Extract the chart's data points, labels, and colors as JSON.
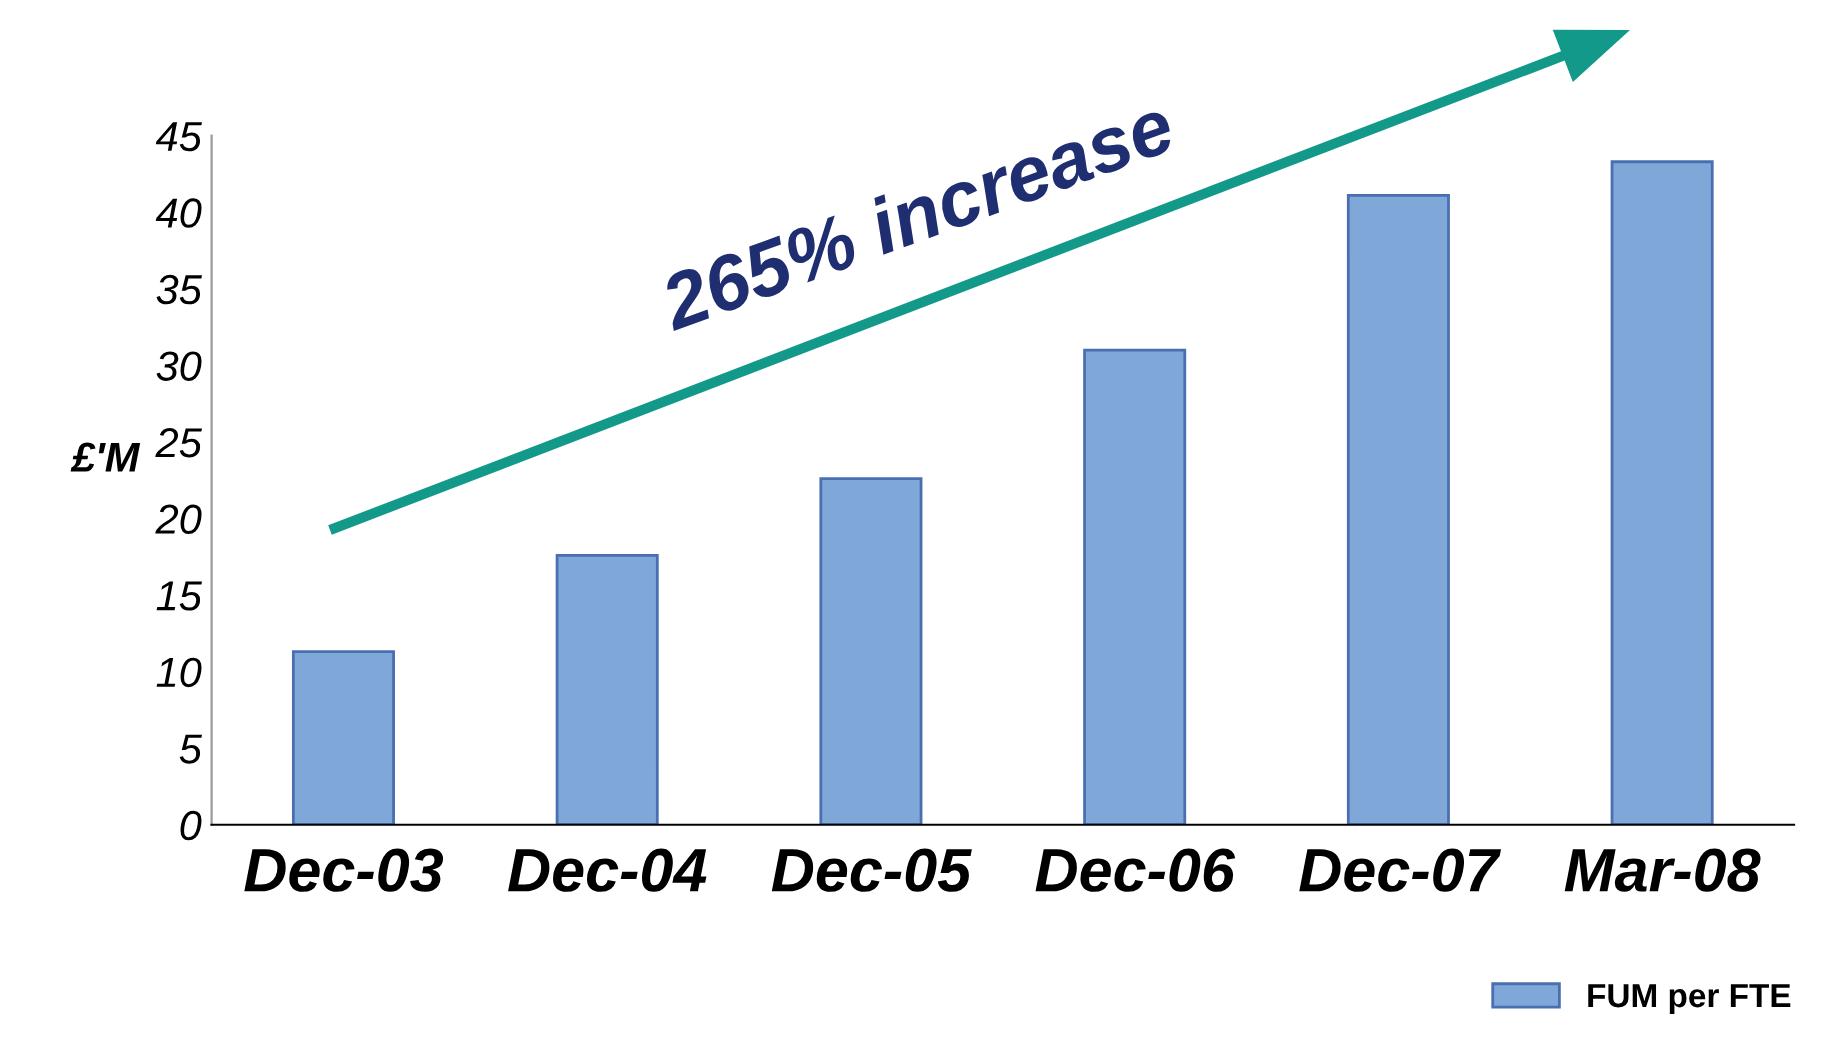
{
  "chart_data": {
    "type": "bar",
    "ylabel": "£'M",
    "categories": [
      "Dec-03",
      "Dec-04",
      "Dec-05",
      "Dec-06",
      "Dec-07",
      "Mar-08"
    ],
    "series": [
      {
        "name": "FUM per FTE",
        "color": "#7fa8d8",
        "values": [
          11.3,
          17.6,
          22.6,
          31,
          41.1,
          43.3
        ]
      }
    ],
    "ylim": [
      0,
      45
    ],
    "yticks": [
      0,
      5,
      10,
      15,
      20,
      25,
      30,
      35,
      40,
      45
    ],
    "annotations": [
      "265% increase"
    ],
    "grid": false,
    "legend": "bottom right"
  }
}
